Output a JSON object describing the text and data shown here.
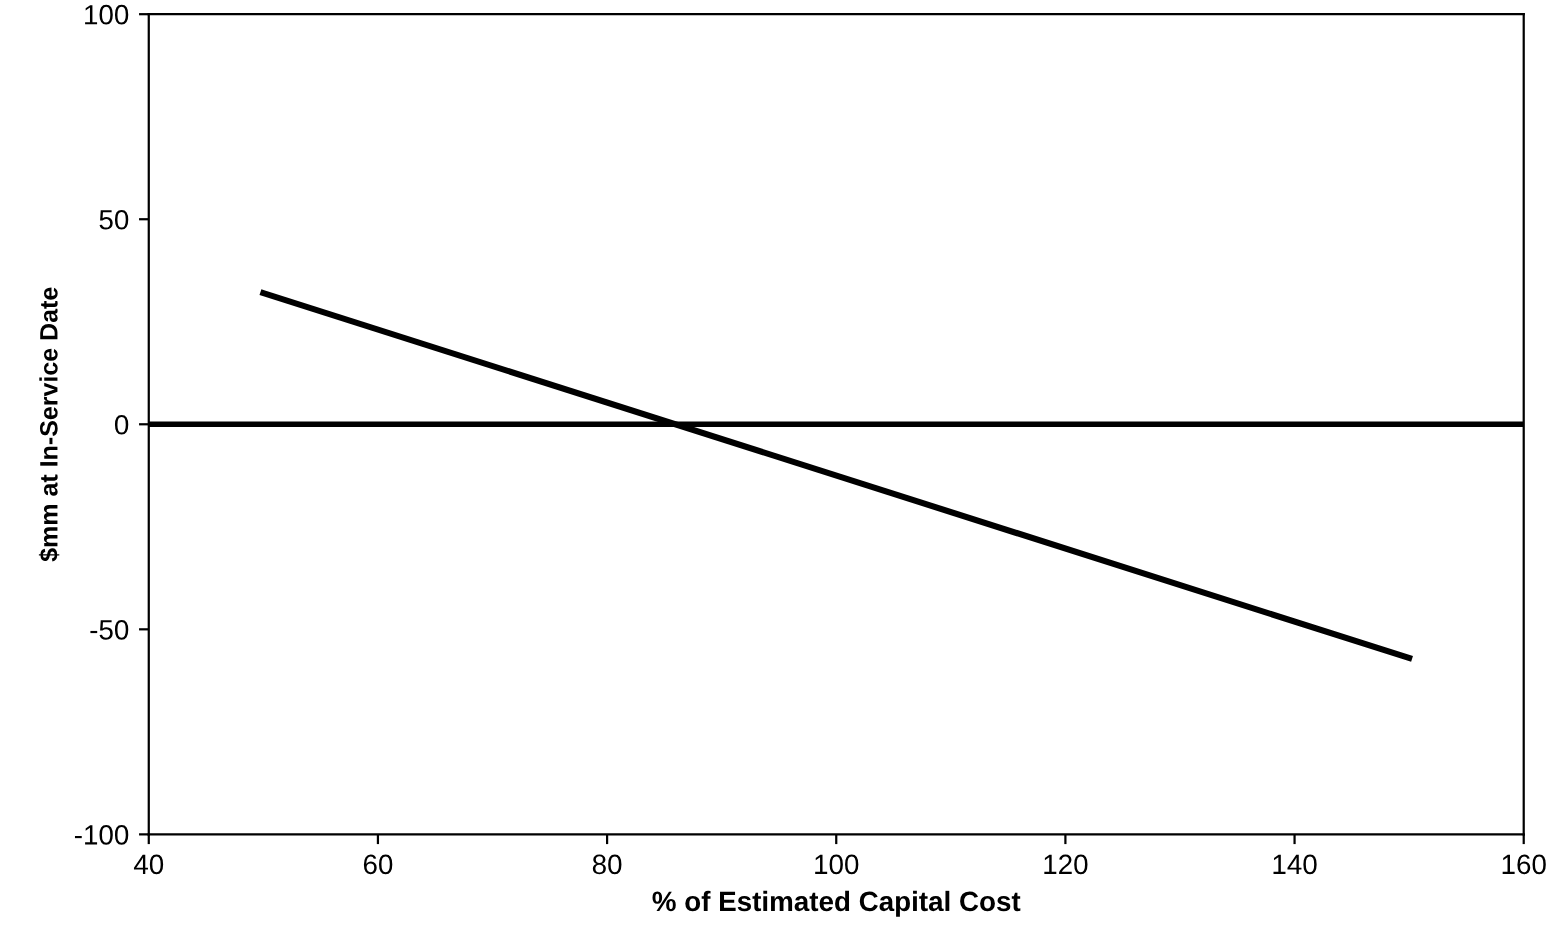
{
  "chart_data": {
    "type": "line",
    "xlabel": "% of Estimated Capital Cost",
    "ylabel": "$mm at In-Service Date",
    "x": [
      50,
      150
    ],
    "series": [
      {
        "color": "#000000",
        "values": [
          32,
          -57
        ]
      }
    ],
    "xlim": [
      40,
      160
    ],
    "xticks": [
      40,
      60,
      80,
      100,
      120,
      140,
      160
    ],
    "ylim": [
      -100,
      100
    ],
    "yticks": [
      -100,
      -50,
      0,
      50,
      100
    ],
    "ref_lines": [
      {
        "axis": "y",
        "value": 0,
        "color": "#000000",
        "line_style": "solid"
      }
    ],
    "grid": false,
    "legend": false,
    "marker": "none",
    "line_style": "solid"
  }
}
